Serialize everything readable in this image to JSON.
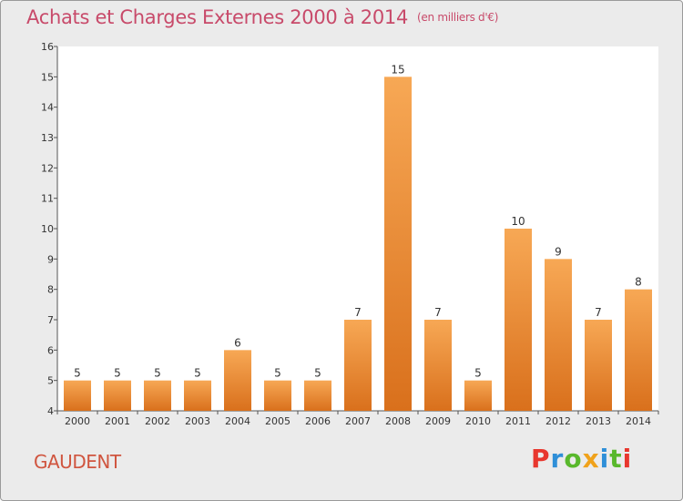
{
  "header": {
    "title": "Achats et Charges Externes 2000 à 2014",
    "unit": "(en milliers d'€)"
  },
  "footer": {
    "commune": "GAUDENT",
    "logo_text": "Proxiti"
  },
  "colors": {
    "bar_top": "#f7a855",
    "bar_bottom": "#d9701c",
    "title": "#c84a6a",
    "commune": "#d0553f",
    "logo": [
      "#e8372e",
      "#2f8fd8",
      "#59b82c",
      "#f0a21b",
      "#2f8fd8",
      "#59b82c",
      "#e8372e"
    ]
  },
  "chart_data": {
    "type": "bar",
    "title": "Achats et Charges Externes 2000 à 2014",
    "subtitle": "(en milliers d'€)",
    "categories": [
      "2000",
      "2001",
      "2002",
      "2003",
      "2004",
      "2005",
      "2006",
      "2007",
      "2008",
      "2009",
      "2010",
      "2011",
      "2012",
      "2013",
      "2014"
    ],
    "values": [
      5,
      5,
      5,
      5,
      6,
      5,
      5,
      7,
      15,
      7,
      5,
      10,
      9,
      7,
      8
    ],
    "ylim": [
      4,
      16
    ],
    "yticks": [
      4,
      5,
      6,
      7,
      8,
      9,
      10,
      11,
      12,
      13,
      14,
      15,
      16
    ],
    "grid": false,
    "data_labels": true
  }
}
